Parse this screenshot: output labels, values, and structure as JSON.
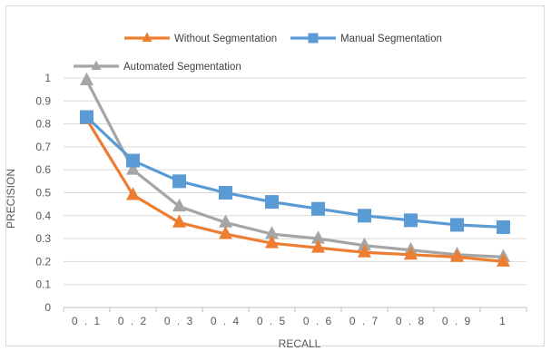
{
  "chart_data": {
    "type": "line",
    "categories": [
      "0.1",
      "0.2",
      "0.3",
      "0.4",
      "0.5",
      "0.6",
      "0.7",
      "0.8",
      "0.9",
      "1"
    ],
    "series": [
      {
        "name": "Without Segmentation",
        "color": "#ed7d31",
        "marker": "triangle",
        "values": [
          0.82,
          0.49,
          0.37,
          0.32,
          0.28,
          0.26,
          0.24,
          0.23,
          0.22,
          0.2
        ]
      },
      {
        "name": "Manual Segmentation",
        "color": "#5b9bd5",
        "marker": "square",
        "values": [
          0.83,
          0.64,
          0.55,
          0.5,
          0.46,
          0.43,
          0.4,
          0.38,
          0.36,
          0.35
        ]
      },
      {
        "name": "Automated Segmentation",
        "color": "#a5a5a5",
        "marker": "triangle",
        "values": [
          0.99,
          0.6,
          0.44,
          0.37,
          0.32,
          0.3,
          0.27,
          0.25,
          0.23,
          0.22
        ]
      }
    ],
    "xlabel": "RECALL",
    "ylabel": "PRECISION",
    "ylim": [
      0,
      1
    ],
    "yticks": [
      "0",
      "0.1",
      "0.2",
      "0.3",
      "0.4",
      "0.5",
      "0.6",
      "0.7",
      "0.8",
      "0.9",
      "1"
    ],
    "xtick_labels": [
      "0 . 1",
      "0 . 2",
      "0 . 3",
      "0 . 4",
      "0 . 5",
      "0 . 6",
      "0 . 7",
      "0 . 8",
      "0 . 9",
      "1"
    ],
    "grid": "horizontal",
    "legend_position": "top"
  }
}
